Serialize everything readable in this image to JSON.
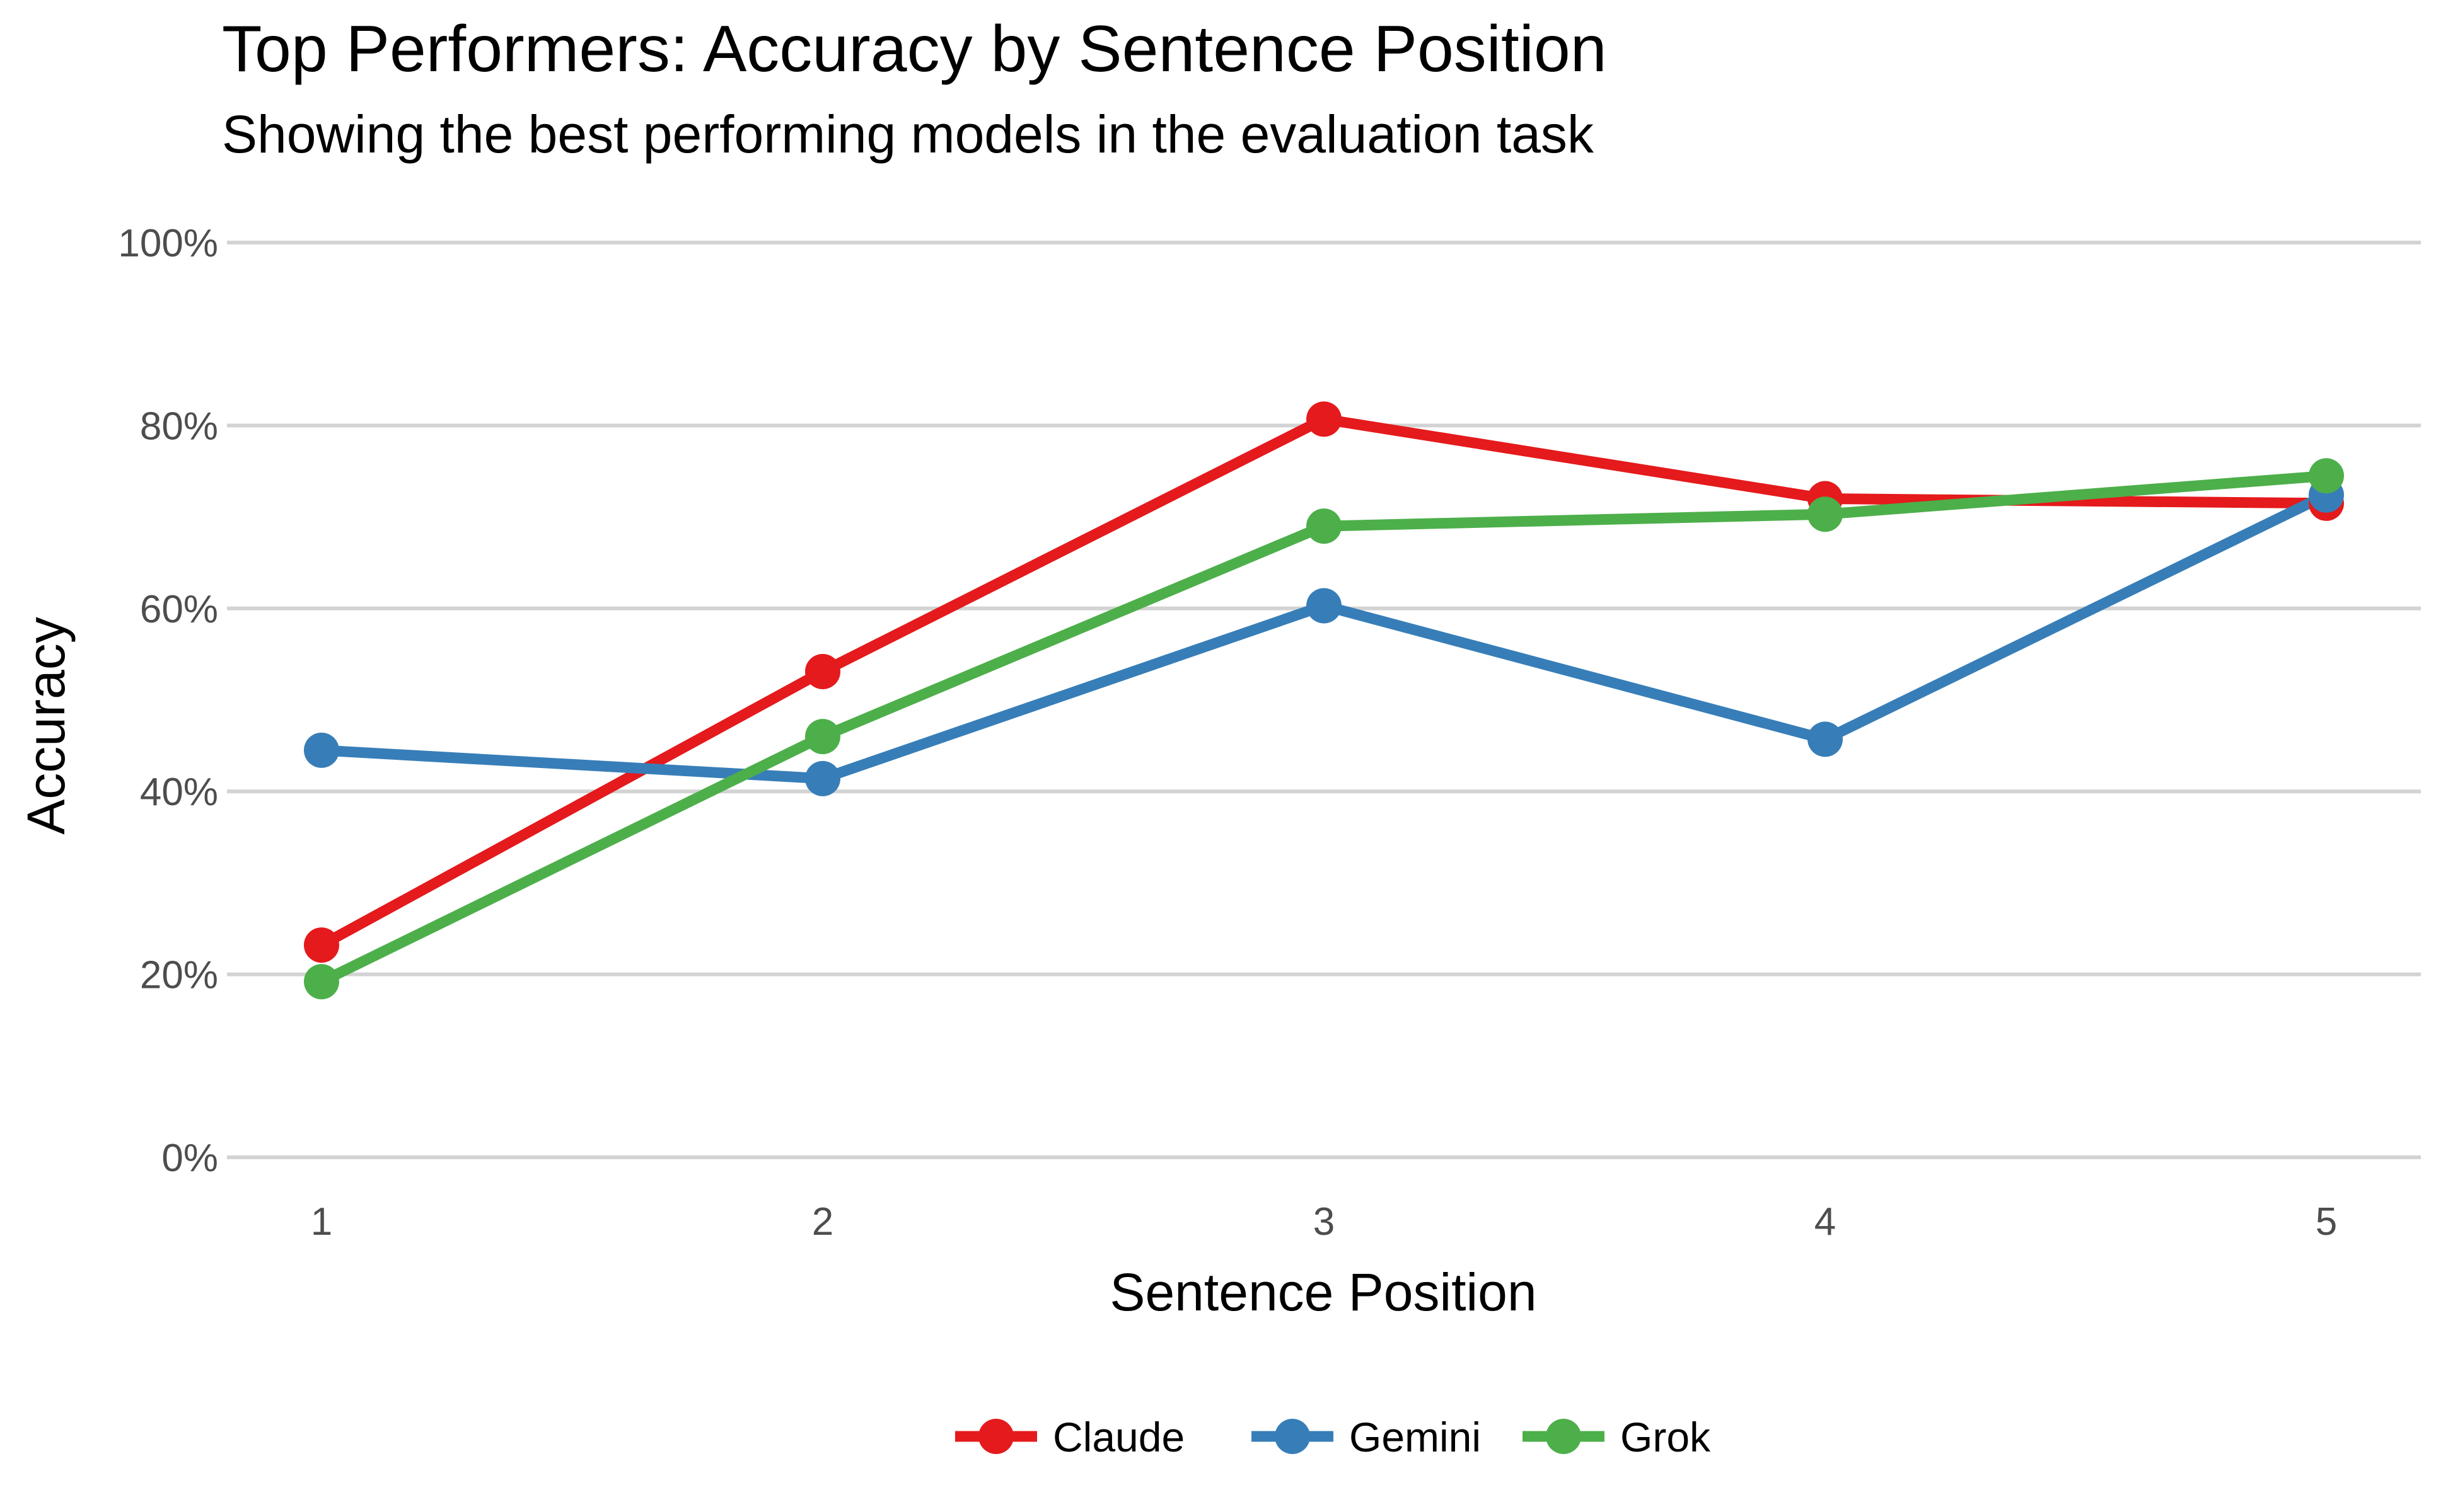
{
  "chart_data": {
    "type": "line",
    "title": "Top Performers: Accuracy by Sentence Position",
    "subtitle": "Showing the best performing models in the evaluation task",
    "xlabel": "Sentence Position",
    "ylabel": "Accuracy",
    "x": [
      1,
      2,
      3,
      4,
      5
    ],
    "x_tick_labels": [
      "1",
      "2",
      "3",
      "4",
      "5"
    ],
    "ylim": [
      0,
      1
    ],
    "y_ticks": [
      0,
      0.2,
      0.4,
      0.6,
      0.8,
      1.0
    ],
    "y_tick_labels": [
      "0%",
      "20%",
      "40%",
      "60%",
      "80%",
      "100%"
    ],
    "grid": "horizontal",
    "legend_position": "bottom",
    "series": [
      {
        "name": "Claude",
        "color": "#e41a1c",
        "values": [
          0.232,
          0.531,
          0.807,
          0.72,
          0.715
        ]
      },
      {
        "name": "Gemini",
        "color": "#377eb8",
        "values": [
          0.445,
          0.414,
          0.603,
          0.457,
          0.724
        ]
      },
      {
        "name": "Grok",
        "color": "#4daf4a",
        "values": [
          0.192,
          0.46,
          0.69,
          0.703,
          0.745
        ]
      }
    ]
  }
}
